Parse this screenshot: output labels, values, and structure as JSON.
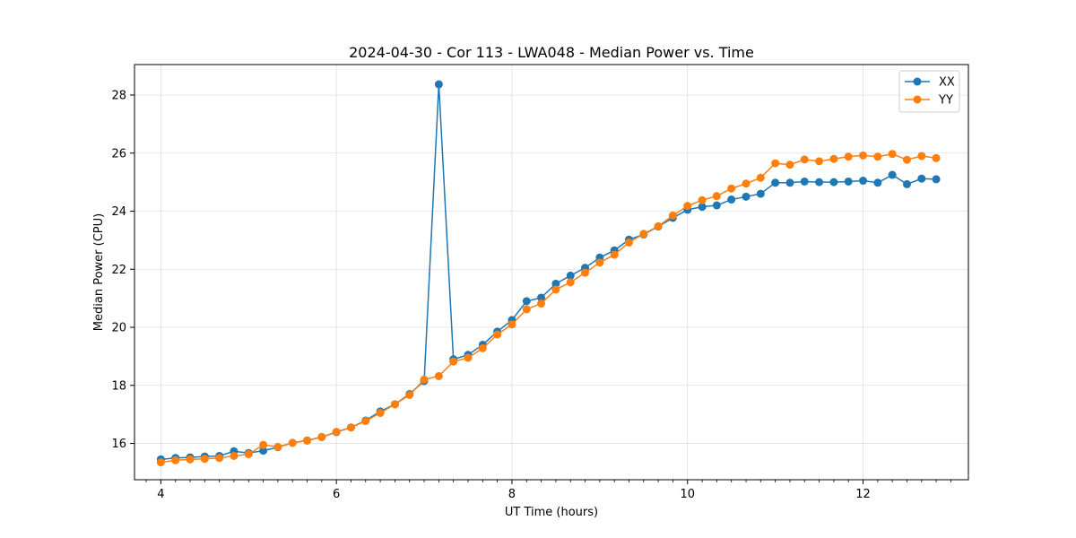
{
  "chart_data": {
    "type": "line",
    "title": "2024-04-30 - Cor 113 - LWA048 - Median Power vs. Time",
    "xlabel": "UT Time (hours)",
    "ylabel": "Median Power (CPU)",
    "xlim": [
      3.7,
      13.2
    ],
    "ylim": [
      14.75,
      29.05
    ],
    "xticks": [
      4,
      6,
      8,
      10,
      12
    ],
    "xticks_minor": [
      3.833,
      4.167,
      4.333,
      4.5,
      4.667,
      4.833,
      5,
      5.167,
      5.333,
      5.5,
      5.667,
      5.833,
      6.167,
      6.333,
      6.5,
      6.667,
      6.833,
      7,
      7.167,
      7.333,
      7.5,
      7.667,
      7.833,
      8.167,
      8.333,
      8.5,
      8.667,
      8.833,
      9,
      9.167,
      9.333,
      9.5,
      9.667,
      9.833,
      10.167,
      10.333,
      10.5,
      10.667,
      10.833,
      11,
      11.167,
      11.333,
      11.5,
      11.667,
      11.833,
      12.167,
      12.333,
      12.5,
      12.667,
      12.833,
      13
    ],
    "yticks": [
      16,
      18,
      20,
      22,
      24,
      26,
      28
    ],
    "grid": true,
    "legend_position": "top-right",
    "x": [
      4.0,
      4.167,
      4.333,
      4.5,
      4.667,
      4.833,
      5.0,
      5.167,
      5.333,
      5.5,
      5.667,
      5.833,
      6.0,
      6.167,
      6.333,
      6.5,
      6.667,
      6.833,
      7.0,
      7.167,
      7.333,
      7.5,
      7.667,
      7.833,
      8.0,
      8.167,
      8.333,
      8.5,
      8.667,
      8.833,
      9.0,
      9.167,
      9.333,
      9.5,
      9.667,
      9.833,
      10.0,
      10.167,
      10.333,
      10.5,
      10.667,
      10.833,
      11.0,
      11.167,
      11.333,
      11.5,
      11.667,
      11.833,
      12.0,
      12.167,
      12.333,
      12.5,
      12.667,
      12.833
    ],
    "series": [
      {
        "name": "XX",
        "color": "#1f77b4",
        "values": [
          15.45,
          15.5,
          15.52,
          15.55,
          15.57,
          15.73,
          15.67,
          15.75,
          15.87,
          16.02,
          16.1,
          16.22,
          16.39,
          16.55,
          16.79,
          17.1,
          17.35,
          17.7,
          18.15,
          28.37,
          18.9,
          19.05,
          19.4,
          19.85,
          20.25,
          20.9,
          21.02,
          21.5,
          21.78,
          22.05,
          22.4,
          22.65,
          23.02,
          23.2,
          23.47,
          23.77,
          24.05,
          24.15,
          24.2,
          24.4,
          24.5,
          24.6,
          24.98,
          24.98,
          25.02,
          25.0,
          25.0,
          25.02,
          25.05,
          24.98,
          25.25,
          24.93,
          25.12,
          25.1
        ]
      },
      {
        "name": "YY",
        "color": "#ff7f0e",
        "values": [
          15.35,
          15.42,
          15.45,
          15.47,
          15.5,
          15.57,
          15.63,
          15.95,
          15.88,
          16.02,
          16.1,
          16.22,
          16.4,
          16.55,
          16.77,
          17.05,
          17.35,
          17.67,
          18.2,
          18.32,
          18.82,
          18.95,
          19.28,
          19.75,
          20.1,
          20.62,
          20.82,
          21.3,
          21.55,
          21.88,
          22.23,
          22.5,
          22.92,
          23.22,
          23.48,
          23.85,
          24.18,
          24.38,
          24.52,
          24.78,
          24.95,
          25.15,
          25.65,
          25.6,
          25.78,
          25.72,
          25.8,
          25.88,
          25.92,
          25.88,
          25.97,
          25.77,
          25.9,
          25.83
        ]
      }
    ]
  }
}
